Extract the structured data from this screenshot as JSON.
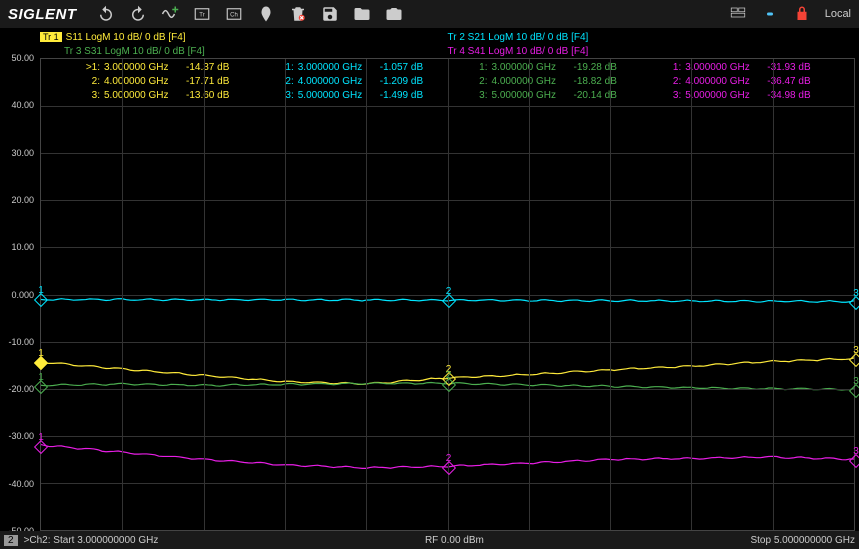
{
  "brand": "SIGLENT",
  "toolbar": {
    "local": "Local"
  },
  "traces": {
    "tr1": {
      "badge": "Tr 1",
      "label": "S11 LogM 10 dB/ 0 dB [F4]",
      "color": "#ffeb3b"
    },
    "tr2": {
      "label": "Tr 2   S21 LogM 10 dB/ 0 dB [F4]",
      "color": "#00e5ff"
    },
    "tr3": {
      "label": "Tr 3   S31 LogM 10 dB/ 0 dB [F4]",
      "color": "#4caf50"
    },
    "tr4": {
      "label": "Tr 4   S41 LogM 10 dB/ 0 dB [F4]",
      "color": "#e91ee6"
    }
  },
  "markers": {
    "c1": {
      "color": "#ffeb3b",
      "rows": [
        {
          "idx": ">1:",
          "freq": "3.000000 GHz",
          "val": "-14.37 dB"
        },
        {
          "idx": "2:",
          "freq": "4.000000 GHz",
          "val": "-17.71 dB"
        },
        {
          "idx": "3:",
          "freq": "5.000000 GHz",
          "val": "-13.60 dB"
        }
      ]
    },
    "c2": {
      "color": "#00e5ff",
      "rows": [
        {
          "idx": "1:",
          "freq": "3.000000 GHz",
          "val": "-1.057 dB"
        },
        {
          "idx": "2:",
          "freq": "4.000000 GHz",
          "val": "-1.209 dB"
        },
        {
          "idx": "3:",
          "freq": "5.000000 GHz",
          "val": "-1.499 dB"
        }
      ]
    },
    "c3": {
      "color": "#4caf50",
      "rows": [
        {
          "idx": "1:",
          "freq": "3.000000 GHz",
          "val": "-19.28 dB"
        },
        {
          "idx": "2:",
          "freq": "4.000000 GHz",
          "val": "-18.82 dB"
        },
        {
          "idx": "3:",
          "freq": "5.000000 GHz",
          "val": "-20.14 dB"
        }
      ]
    },
    "c4": {
      "color": "#e91ee6",
      "rows": [
        {
          "idx": "1:",
          "freq": "3.000000 GHz",
          "val": "-31.93 dB"
        },
        {
          "idx": "2:",
          "freq": "4.000000 GHz",
          "val": "-36.47 dB"
        },
        {
          "idx": "3:",
          "freq": "5.000000 GHz",
          "val": "-34.98 dB"
        }
      ]
    }
  },
  "yaxis": {
    "labels": [
      "50.00",
      "40.00",
      "30.00",
      "20.00",
      "10.00",
      "0.000",
      "-10.00",
      "-20.00",
      "-30.00",
      "-40.00",
      "-50.00"
    ],
    "min": -50,
    "max": 50,
    "step": 10
  },
  "xaxis": {
    "min": 3,
    "max": 5,
    "divs": 10
  },
  "plot": {
    "traces": {
      "s11": {
        "color": "#ffeb3b",
        "y": [
          -14.37,
          -15.8,
          -17.2,
          -18.5,
          -19.0,
          -17.71,
          -17.0,
          -16.0,
          -15.2,
          -14.2,
          -13.6
        ]
      },
      "s21": {
        "color": "#00e5ff",
        "y": [
          -1.057,
          -1.08,
          -1.12,
          -1.15,
          -1.18,
          -1.209,
          -1.26,
          -1.32,
          -1.38,
          -1.44,
          -1.499
        ]
      },
      "s31": {
        "color": "#4caf50",
        "y": [
          -19.28,
          -19.0,
          -19.3,
          -19.1,
          -18.9,
          -18.82,
          -19.2,
          -19.5,
          -19.8,
          -20.0,
          -20.14
        ]
      },
      "s41": {
        "color": "#e91ee6",
        "y": [
          -31.93,
          -33.5,
          -35.0,
          -36.2,
          -36.8,
          -36.47,
          -35.8,
          -35.0,
          -34.8,
          -34.5,
          -34.98
        ]
      }
    },
    "marker_x": [
      0,
      0.5,
      1.0
    ]
  },
  "statusbar": {
    "badge": "2",
    "start": ">Ch2: Start 3.000000000 GHz",
    "center": "RF 0.00 dBm",
    "stop": "Stop 5.000000000 GHz"
  },
  "colors": {
    "bg": "#000000",
    "grid": "#333333",
    "toolbar": "#1a1a1a",
    "text": "#cccccc"
  }
}
